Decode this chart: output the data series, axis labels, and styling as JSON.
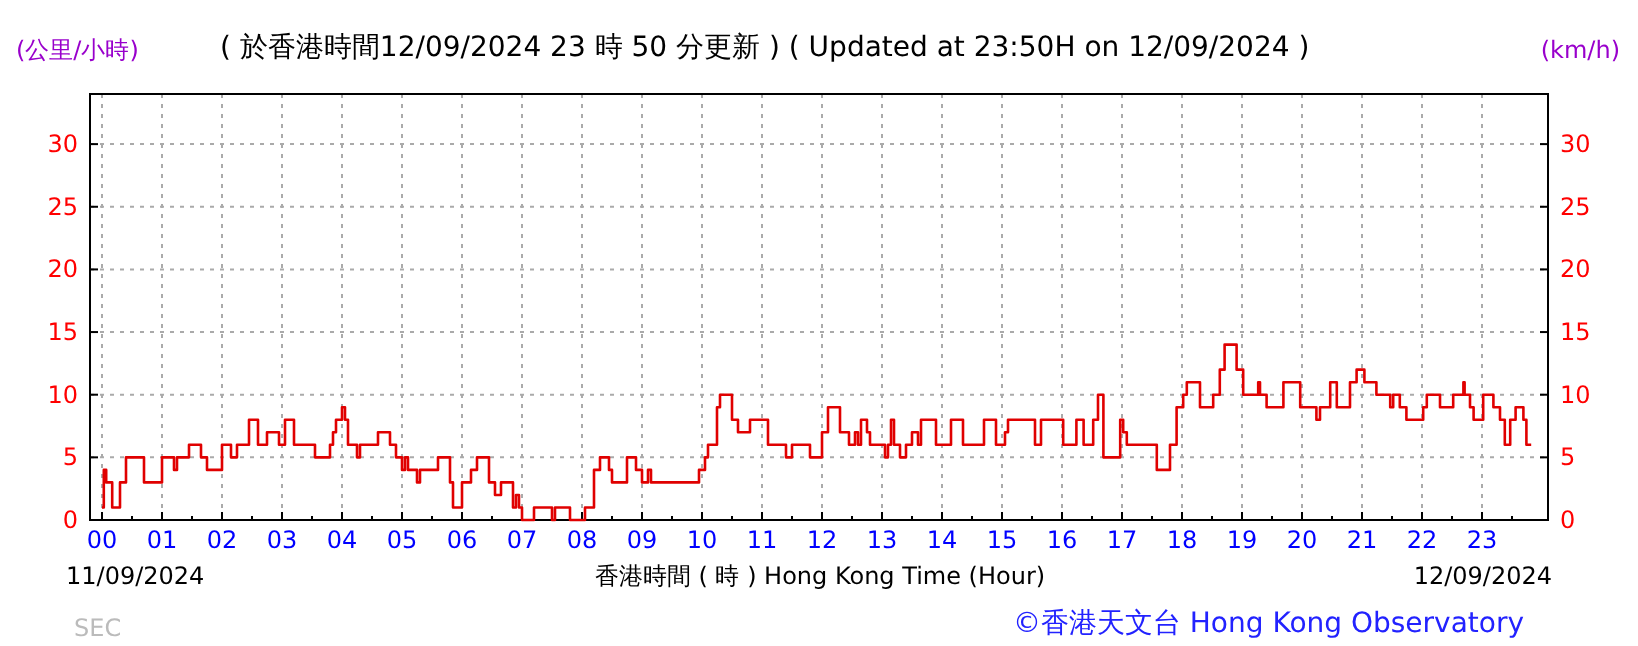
{
  "chart_data": {
    "type": "step",
    "title": "( 於香港時間12/09/2024 23 時 50 分更新 ) ( Updated at 23:50H on 12/09/2024 )",
    "xlabel": "香港時間 ( 時 )  Hong Kong Time (Hour)",
    "ylabel": "(公里/小時)",
    "y2label": "(km/h)",
    "annotations": [
      "11/09/2024",
      "12/09/2024",
      "©香港天文台 Hong Kong Observatory",
      "SEC"
    ],
    "xlim": [
      -0.2,
      24.1
    ],
    "ylim": [
      0,
      34
    ],
    "y2lim": [
      0,
      34
    ],
    "xticks": [
      {
        "value": 0,
        "label": "00"
      },
      {
        "value": 1,
        "label": "01"
      },
      {
        "value": 2,
        "label": "02"
      },
      {
        "value": 3,
        "label": "03"
      },
      {
        "value": 4,
        "label": "04"
      },
      {
        "value": 5,
        "label": "05"
      },
      {
        "value": 6,
        "label": "06"
      },
      {
        "value": 7,
        "label": "07"
      },
      {
        "value": 8,
        "label": "08"
      },
      {
        "value": 9,
        "label": "09"
      },
      {
        "value": 10,
        "label": "10"
      },
      {
        "value": 11,
        "label": "11"
      },
      {
        "value": 12,
        "label": "12"
      },
      {
        "value": 13,
        "label": "13"
      },
      {
        "value": 14,
        "label": "14"
      },
      {
        "value": 15,
        "label": "15"
      },
      {
        "value": 16,
        "label": "16"
      },
      {
        "value": 17,
        "label": "17"
      },
      {
        "value": 18,
        "label": "18"
      },
      {
        "value": 19,
        "label": "19"
      },
      {
        "value": 20,
        "label": "20"
      },
      {
        "value": 21,
        "label": "21"
      },
      {
        "value": 22,
        "label": "22"
      },
      {
        "value": 23,
        "label": "23"
      }
    ],
    "yticks": [
      0,
      5,
      10,
      15,
      20,
      25,
      30
    ],
    "y2ticks": [
      0,
      5,
      10,
      15,
      20,
      25,
      30
    ],
    "grid": true,
    "marker": "none",
    "line_style": "solid",
    "series": [
      {
        "color": "#e00000",
        "x": [
          0,
          0.03,
          0.07,
          0.17,
          0.3,
          0.4,
          0.55,
          0.7,
          0.9,
          1.0,
          1.15,
          1.2,
          1.25,
          1.4,
          1.45,
          1.6,
          1.65,
          1.75,
          1.9,
          2.0,
          2.1,
          2.15,
          2.25,
          2.4,
          2.45,
          2.5,
          2.6,
          2.7,
          2.75,
          2.9,
          2.95,
          3.05,
          3.1,
          3.2,
          3.5,
          3.55,
          3.7,
          3.8,
          3.85,
          3.9,
          4.0,
          4.05,
          4.1,
          4.2,
          4.25,
          4.3,
          4.55,
          4.6,
          4.7,
          4.8,
          4.9,
          5.0,
          5.05,
          5.1,
          5.2,
          5.25,
          5.3,
          5.55,
          5.6,
          5.7,
          5.8,
          5.85,
          5.95,
          6.0,
          6.1,
          6.15,
          6.25,
          6.35,
          6.45,
          6.55,
          6.65,
          6.8,
          6.85,
          6.9,
          6.95,
          7.0,
          7.15,
          7.2,
          7.45,
          7.5,
          7.55,
          7.75,
          7.8,
          8.0,
          8.05,
          8.15,
          8.2,
          8.3,
          8.4,
          8.45,
          8.5,
          8.65,
          8.75,
          8.85,
          8.9,
          9.0,
          9.1,
          9.15,
          9.9,
          9.95,
          10.05,
          10.1,
          10.25,
          10.3,
          10.45,
          10.5,
          10.6,
          10.75,
          10.8,
          11.0,
          11.1,
          11.35,
          11.4,
          11.5,
          11.75,
          11.8,
          11.95,
          12.0,
          12.1,
          12.25,
          12.3,
          12.45,
          12.55,
          12.6,
          12.65,
          12.75,
          12.8,
          13.0,
          13.05,
          13.1,
          13.15,
          13.2,
          13.3,
          13.4,
          13.5,
          13.6,
          13.65,
          13.85,
          13.9,
          14.1,
          14.15,
          14.3,
          14.35,
          14.65,
          14.7,
          14.85,
          14.9,
          15.05,
          15.1,
          15.5,
          15.55,
          15.65,
          15.8,
          15.91,
          16.02,
          16.24,
          16.36,
          16.52,
          16.6,
          16.69,
          16.86,
          16.97,
          17.02,
          17.08,
          17.47,
          17.58,
          17.74,
          17.8,
          17.91,
          18.02,
          18.08,
          18.24,
          18.3,
          18.47,
          18.52,
          18.63,
          18.71,
          18.86,
          18.91,
          19.02,
          19.19,
          19.27,
          19.3,
          19.41,
          19.52,
          19.69,
          19.91,
          19.97,
          20.13,
          20.24,
          20.3,
          20.47,
          20.58,
          20.63,
          20.8,
          20.91,
          21.04,
          21.19,
          21.24,
          21.41,
          21.47,
          21.52,
          21.63,
          21.74,
          21.91,
          22.02,
          22.08,
          22.24,
          22.3,
          22.47,
          22.52,
          22.63,
          22.69,
          22.71,
          22.8,
          22.86,
          22.93,
          23.02,
          23.13,
          23.19,
          23.3,
          23.38,
          23.47,
          23.56,
          23.63,
          23.69,
          23.74,
          23.82
        ],
        "values": [
          1,
          4,
          3,
          1,
          3,
          5,
          5,
          3,
          3,
          5,
          5,
          4,
          5,
          5,
          6,
          6,
          5,
          4,
          4,
          6,
          6,
          5,
          6,
          6,
          8,
          8,
          6,
          6,
          7,
          7,
          6,
          8,
          8,
          6,
          6,
          5,
          5,
          6,
          7,
          8,
          9,
          8,
          6,
          6,
          5,
          6,
          6,
          7,
          7,
          6,
          5,
          4,
          5,
          4,
          4,
          3,
          4,
          4,
          5,
          5,
          3,
          1,
          1,
          3,
          3,
          4,
          5,
          5,
          3,
          2,
          3,
          3,
          1,
          2,
          1,
          0,
          0,
          1,
          1,
          0,
          1,
          1,
          0,
          0,
          1,
          1,
          4,
          5,
          5,
          4,
          3,
          3,
          5,
          5,
          4,
          3,
          4,
          3,
          3,
          4,
          5,
          6,
          9,
          10,
          10,
          8,
          7,
          7,
          8,
          8,
          6,
          6,
          5,
          6,
          6,
          5,
          5,
          7,
          9,
          9,
          7,
          6,
          7,
          6,
          8,
          7,
          6,
          6,
          5,
          6,
          8,
          6,
          5,
          6,
          7,
          6,
          8,
          8,
          6,
          6,
          8,
          8,
          6,
          6,
          8,
          8,
          6,
          7,
          8,
          8,
          6,
          8,
          8,
          8,
          6,
          8,
          6,
          8,
          10,
          5,
          5,
          8,
          7,
          6,
          6,
          4,
          4,
          6,
          9,
          10,
          11,
          11,
          9,
          9,
          10,
          12,
          14,
          14,
          12,
          10,
          10,
          11,
          10,
          9,
          9,
          11,
          11,
          9,
          9,
          8,
          9,
          11,
          9,
          9,
          11,
          12,
          11,
          11,
          10,
          10,
          9,
          10,
          9,
          8,
          8,
          9,
          10,
          10,
          9,
          9,
          10,
          10,
          11,
          10,
          9,
          8,
          8,
          10,
          10,
          9,
          8,
          6,
          8,
          9,
          9,
          8,
          6,
          6
        ]
      }
    ]
  }
}
